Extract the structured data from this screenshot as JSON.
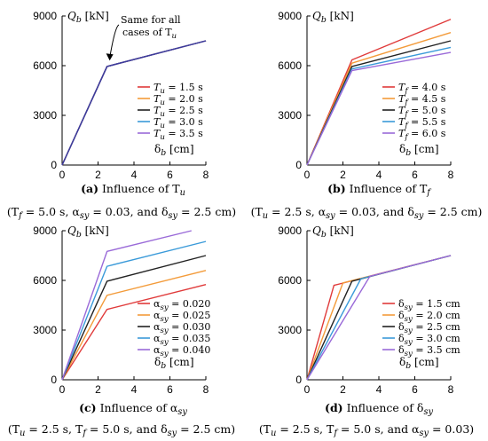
{
  "colors": {
    "red": "#e03b3b",
    "orange": "#f39b3a",
    "black": "#222222",
    "blue": "#3a9ad9",
    "purple": "#9a6ad8",
    "navy": "#3b3b9a"
  },
  "chart_data": [
    {
      "type": "line",
      "panel": "a",
      "caption": {
        "label": "(a)",
        "text": " Influence of  T",
        "sub": "u"
      },
      "conditions": "(T_f = 5.0 s,  α_sy = 0.03, and  δ_sy = 2.5 cm)",
      "conditions_parts": [
        [
          "(T",
          ""
        ],
        [
          "f",
          "s"
        ],
        [
          " = 5.0 s,  α",
          ""
        ],
        [
          "sy",
          "s"
        ],
        [
          " = 0.03, and  δ",
          ""
        ],
        [
          "sy",
          "s"
        ],
        [
          " = 2.5 cm)",
          ""
        ]
      ],
      "ylabel": "Q_b [kN]",
      "ylabel_parts": [
        [
          "Q",
          ""
        ],
        [
          "b",
          "s"
        ],
        [
          " [kN]",
          ""
        ]
      ],
      "xlabel": "δ_b [cm]",
      "xlabel_parts": [
        [
          "δ",
          ""
        ],
        [
          "b",
          "s"
        ],
        [
          " [cm]",
          ""
        ]
      ],
      "xlim": [
        0,
        8
      ],
      "ylim": [
        0,
        9000
      ],
      "xticks": [
        "0",
        "2",
        "4",
        "6",
        "8"
      ],
      "yticks": [
        "0",
        "3000",
        "6000",
        "9000"
      ],
      "legend": "center-right",
      "annotation": {
        "lines": [
          "Same for all",
          "cases of T"
        ],
        "sub": "u"
      },
      "series": [
        {
          "name": "T_u = 1.5 s",
          "parts": [
            [
              "T",
              ""
            ],
            [
              "u",
              "s"
            ],
            [
              " = 1.5 s",
              ""
            ]
          ],
          "color": "#e03b3b",
          "x": [
            0,
            2.5,
            8
          ],
          "y": [
            0,
            5950,
            7500
          ]
        },
        {
          "name": "T_u = 2.0 s",
          "parts": [
            [
              "T",
              ""
            ],
            [
              "u",
              "s"
            ],
            [
              " = 2.0 s",
              ""
            ]
          ],
          "color": "#f39b3a",
          "x": [
            0,
            2.5,
            8
          ],
          "y": [
            0,
            5950,
            7500
          ]
        },
        {
          "name": "T_u = 2.5 s",
          "parts": [
            [
              "T",
              ""
            ],
            [
              "u",
              "s"
            ],
            [
              " = 2.5 s",
              ""
            ]
          ],
          "color": "#222222",
          "x": [
            0,
            2.5,
            8
          ],
          "y": [
            0,
            5950,
            7500
          ]
        },
        {
          "name": "T_u = 3.0 s",
          "parts": [
            [
              "T",
              ""
            ],
            [
              "u",
              "s"
            ],
            [
              " = 3.0 s",
              ""
            ]
          ],
          "color": "#3a9ad9",
          "x": [
            0,
            2.5,
            8
          ],
          "y": [
            0,
            5950,
            7500
          ]
        },
        {
          "name": "T_u = 3.5 s",
          "parts": [
            [
              "T",
              ""
            ],
            [
              "u",
              "s"
            ],
            [
              " = 3.5 s",
              ""
            ]
          ],
          "color": "#9a6ad8",
          "x": [
            0,
            2.5,
            8
          ],
          "y": [
            0,
            5950,
            7500
          ]
        },
        {
          "name": "",
          "parts": [],
          "color": "#3b3b9a",
          "x": [
            0,
            2.5,
            8
          ],
          "y": [
            0,
            5950,
            7500
          ]
        }
      ]
    },
    {
      "type": "line",
      "panel": "b",
      "caption": {
        "label": "(b)",
        "text": " Influence of  T",
        "sub": "f"
      },
      "conditions": "(T_u = 2.5 s,  α_sy = 0.03, and  δ_sy = 2.5 cm)",
      "conditions_parts": [
        [
          "(T",
          ""
        ],
        [
          "u",
          "s"
        ],
        [
          " = 2.5 s,  α",
          ""
        ],
        [
          "sy",
          "s"
        ],
        [
          " = 0.03, and  δ",
          ""
        ],
        [
          "sy",
          "s"
        ],
        [
          " = 2.5 cm)",
          ""
        ]
      ],
      "ylabel": "Q_b [kN]",
      "ylabel_parts": [
        [
          "Q",
          ""
        ],
        [
          "b",
          "s"
        ],
        [
          " [kN]",
          ""
        ]
      ],
      "xlabel": "δ_b [cm]",
      "xlabel_parts": [
        [
          "δ",
          ""
        ],
        [
          "b",
          "s"
        ],
        [
          " [cm]",
          ""
        ]
      ],
      "xlim": [
        0,
        8
      ],
      "ylim": [
        0,
        9000
      ],
      "xticks": [
        "0",
        "2",
        "4",
        "6",
        "8"
      ],
      "yticks": [
        "0",
        "3000",
        "6000",
        "9000"
      ],
      "legend": "center-right",
      "series": [
        {
          "name": "T_f = 4.0 s",
          "parts": [
            [
              "T",
              ""
            ],
            [
              "f",
              "s"
            ],
            [
              " = 4.0 s",
              ""
            ]
          ],
          "color": "#e03b3b",
          "x": [
            0,
            2.5,
            8
          ],
          "y": [
            0,
            6350,
            8800
          ]
        },
        {
          "name": "T_f = 4.5 s",
          "parts": [
            [
              "T",
              ""
            ],
            [
              "f",
              "s"
            ],
            [
              " = 4.5 s",
              ""
            ]
          ],
          "color": "#f39b3a",
          "x": [
            0,
            2.5,
            8
          ],
          "y": [
            0,
            6150,
            8000
          ]
        },
        {
          "name": "T_f = 5.0 s",
          "parts": [
            [
              "T",
              ""
            ],
            [
              "f",
              "s"
            ],
            [
              " = 5.0 s",
              ""
            ]
          ],
          "color": "#222222",
          "x": [
            0,
            2.5,
            8
          ],
          "y": [
            0,
            5950,
            7500
          ]
        },
        {
          "name": "T_f = 5.5 s",
          "parts": [
            [
              "T",
              ""
            ],
            [
              "f",
              "s"
            ],
            [
              " = 5.5 s",
              ""
            ]
          ],
          "color": "#3a9ad9",
          "x": [
            0,
            2.5,
            8
          ],
          "y": [
            0,
            5800,
            7100
          ]
        },
        {
          "name": "T_f = 6.0 s",
          "parts": [
            [
              "T",
              ""
            ],
            [
              "f",
              "s"
            ],
            [
              " = 6.0 s",
              ""
            ]
          ],
          "color": "#9a6ad8",
          "x": [
            0,
            2.5,
            8
          ],
          "y": [
            0,
            5700,
            6800
          ]
        }
      ]
    },
    {
      "type": "line",
      "panel": "c",
      "caption": {
        "label": "(c)",
        "text": " Influence of  α",
        "sub": "sy"
      },
      "conditions": "(T_u = 2.5 s,  T_f = 5.0 s, and  δ_sy = 2.5 cm)",
      "conditions_parts": [
        [
          "(T",
          ""
        ],
        [
          "u",
          "s"
        ],
        [
          " = 2.5 s,  T",
          ""
        ],
        [
          "f",
          "s"
        ],
        [
          " = 5.0 s, and  δ",
          ""
        ],
        [
          "sy",
          "s"
        ],
        [
          " = 2.5 cm)",
          ""
        ]
      ],
      "ylabel": "Q_b [kN]",
      "ylabel_parts": [
        [
          "Q",
          ""
        ],
        [
          "b",
          "s"
        ],
        [
          " [kN]",
          ""
        ]
      ],
      "xlabel": "δ_b [cm]",
      "xlabel_parts": [
        [
          "δ",
          ""
        ],
        [
          "b",
          "s"
        ],
        [
          " [cm]",
          ""
        ]
      ],
      "xlim": [
        0,
        8
      ],
      "ylim": [
        0,
        9000
      ],
      "xticks": [
        "0",
        "2",
        "4",
        "6",
        "8"
      ],
      "yticks": [
        "0",
        "3000",
        "6000",
        "9000"
      ],
      "legend": "lower-right",
      "series": [
        {
          "name": "α_sy = 0.020",
          "parts": [
            [
              "α",
              ""
            ],
            [
              "sy",
              "s"
            ],
            [
              " = 0.020",
              ""
            ]
          ],
          "color": "#e03b3b",
          "x": [
            0,
            2.5,
            8
          ],
          "y": [
            0,
            4250,
            5750
          ]
        },
        {
          "name": "α_sy = 0.025",
          "parts": [
            [
              "α",
              ""
            ],
            [
              "sy",
              "s"
            ],
            [
              " = 0.025",
              ""
            ]
          ],
          "color": "#f39b3a",
          "x": [
            0,
            2.5,
            8
          ],
          "y": [
            0,
            5100,
            6600
          ]
        },
        {
          "name": "α_sy = 0.030",
          "parts": [
            [
              "α",
              ""
            ],
            [
              "sy",
              "s"
            ],
            [
              " = 0.030",
              ""
            ]
          ],
          "color": "#222222",
          "x": [
            0,
            2.5,
            8
          ],
          "y": [
            0,
            5950,
            7500
          ]
        },
        {
          "name": "α_sy = 0.035",
          "parts": [
            [
              "α",
              ""
            ],
            [
              "sy",
              "s"
            ],
            [
              " = 0.035",
              ""
            ]
          ],
          "color": "#3a9ad9",
          "x": [
            0,
            2.5,
            8
          ],
          "y": [
            0,
            6850,
            8350
          ]
        },
        {
          "name": "α_sy = 0.040",
          "parts": [
            [
              "α",
              ""
            ],
            [
              "sy",
              "s"
            ],
            [
              " = 0.040",
              ""
            ]
          ],
          "color": "#9a6ad8",
          "x": [
            0,
            2.5,
            7.2
          ],
          "y": [
            0,
            7750,
            9000
          ]
        }
      ]
    },
    {
      "type": "line",
      "panel": "d",
      "caption": {
        "label": "(d)",
        "text": " Influence of  δ",
        "sub": "sy"
      },
      "conditions": "(T_u = 2.5 s,  T_f = 5.0 s, and  α_sy = 0.03)",
      "conditions_parts": [
        [
          "(T",
          ""
        ],
        [
          "u",
          "s"
        ],
        [
          " = 2.5 s,  T",
          ""
        ],
        [
          "f",
          "s"
        ],
        [
          " = 5.0 s, and  α",
          ""
        ],
        [
          "sy",
          "s"
        ],
        [
          " = 0.03)",
          ""
        ]
      ],
      "ylabel": "Q_b [kN]",
      "ylabel_parts": [
        [
          "Q",
          ""
        ],
        [
          "b",
          "s"
        ],
        [
          " [kN]",
          ""
        ]
      ],
      "xlabel": "δ_b [cm]",
      "xlabel_parts": [
        [
          "δ",
          ""
        ],
        [
          "b",
          "s"
        ],
        [
          " [cm]",
          ""
        ]
      ],
      "xlim": [
        0,
        8
      ],
      "ylim": [
        0,
        9000
      ],
      "xticks": [
        "0",
        "2",
        "4",
        "6",
        "8"
      ],
      "yticks": [
        "0",
        "3000",
        "6000",
        "9000"
      ],
      "legend": "lower-right",
      "series": [
        {
          "name": "δ_sy = 1.5 cm",
          "parts": [
            [
              "δ",
              ""
            ],
            [
              "sy",
              "s"
            ],
            [
              " = 1.5 cm",
              ""
            ]
          ],
          "color": "#e03b3b",
          "x": [
            0,
            1.5,
            8
          ],
          "y": [
            0,
            5700,
            7500
          ]
        },
        {
          "name": "δ_sy = 2.0 cm",
          "parts": [
            [
              "δ",
              ""
            ],
            [
              "sy",
              "s"
            ],
            [
              " = 2.0 cm",
              ""
            ]
          ],
          "color": "#f39b3a",
          "x": [
            0,
            2.0,
            8
          ],
          "y": [
            0,
            5850,
            7500
          ]
        },
        {
          "name": "δ_sy = 2.5 cm",
          "parts": [
            [
              "δ",
              ""
            ],
            [
              "sy",
              "s"
            ],
            [
              " = 2.5 cm",
              ""
            ]
          ],
          "color": "#222222",
          "x": [
            0,
            2.5,
            8
          ],
          "y": [
            0,
            5950,
            7500
          ]
        },
        {
          "name": "δ_sy = 3.0 cm",
          "parts": [
            [
              "δ",
              ""
            ],
            [
              "sy",
              "s"
            ],
            [
              " = 3.0 cm",
              ""
            ]
          ],
          "color": "#3a9ad9",
          "x": [
            0,
            3.0,
            8
          ],
          "y": [
            0,
            6100,
            7500
          ]
        },
        {
          "name": "δ_sy = 3.5 cm",
          "parts": [
            [
              "δ",
              ""
            ],
            [
              "sy",
              "s"
            ],
            [
              " = 3.5 cm",
              ""
            ]
          ],
          "color": "#9a6ad8",
          "x": [
            0,
            3.5,
            8
          ],
          "y": [
            0,
            6250,
            7500
          ]
        }
      ]
    }
  ]
}
